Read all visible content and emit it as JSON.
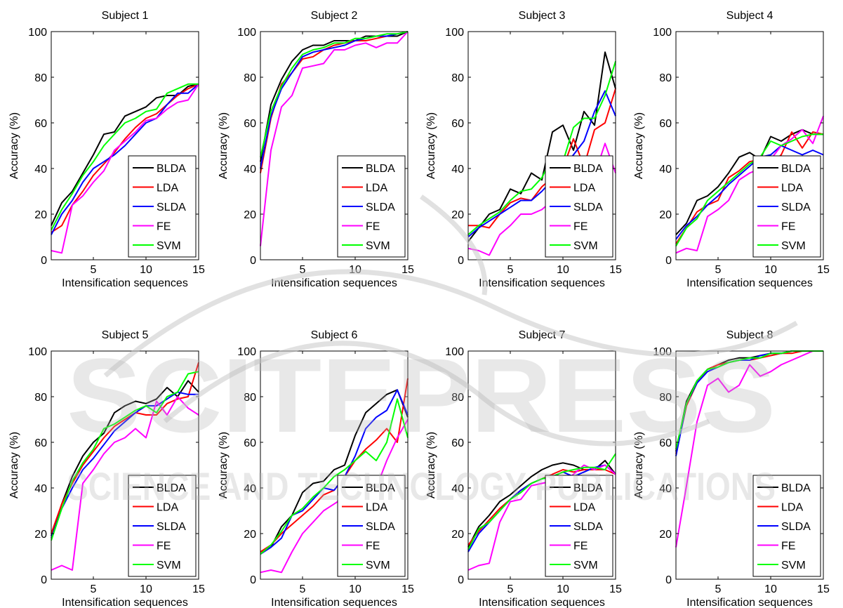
{
  "watermark": {
    "main": "SCITEPRESS",
    "sub": "SCIENCE AND TECHNOLOGY PUBLICATIONS"
  },
  "series_colors": {
    "BLDA": "#000000",
    "LDA": "#ff0000",
    "SLDA": "#0000ff",
    "FE": "#ff00ff",
    "SVM": "#00ff00"
  },
  "chart_data": [
    {
      "type": "line",
      "title": "Subject 1",
      "xlabel": "Intensification sequences",
      "ylabel": "Accuracy (%)",
      "xlim": [
        1,
        15
      ],
      "ylim": [
        0,
        100
      ],
      "xticks": [
        5,
        10,
        15
      ],
      "yticks": [
        0,
        20,
        40,
        60,
        80,
        100
      ],
      "legend": "bottom-right",
      "x": [
        1,
        2,
        3,
        4,
        5,
        6,
        7,
        8,
        9,
        10,
        11,
        12,
        13,
        14,
        15
      ],
      "series": [
        {
          "name": "BLDA",
          "values": [
            15,
            25,
            30,
            38,
            46,
            55,
            56,
            63,
            65,
            67,
            71,
            72,
            72,
            76,
            77
          ]
        },
        {
          "name": "LDA",
          "values": [
            12,
            15,
            24,
            30,
            37,
            42,
            47,
            53,
            58,
            62,
            64,
            68,
            72,
            75,
            77
          ]
        },
        {
          "name": "SLDA",
          "values": [
            11,
            20,
            26,
            34,
            40,
            43,
            46,
            50,
            55,
            60,
            62,
            68,
            73,
            73,
            77
          ]
        },
        {
          "name": "FE",
          "values": [
            4,
            3,
            24,
            28,
            34,
            39,
            48,
            52,
            56,
            61,
            62,
            66,
            69,
            70,
            77
          ]
        },
        {
          "name": "SVM",
          "values": [
            13,
            22,
            29,
            37,
            43,
            50,
            55,
            60,
            62,
            65,
            66,
            73,
            75,
            77,
            77
          ]
        }
      ]
    },
    {
      "type": "line",
      "title": "Subject 2",
      "xlabel": "Intensification sequences",
      "ylabel": "Accuracy (%)",
      "xlim": [
        1,
        15
      ],
      "ylim": [
        0,
        100
      ],
      "xticks": [
        5,
        10,
        15
      ],
      "yticks": [
        0,
        20,
        40,
        60,
        80,
        100
      ],
      "legend": "bottom-right",
      "x": [
        1,
        2,
        3,
        4,
        5,
        6,
        7,
        8,
        9,
        10,
        11,
        12,
        13,
        14,
        15
      ],
      "series": [
        {
          "name": "BLDA",
          "values": [
            43,
            68,
            79,
            87,
            92,
            94,
            94,
            96,
            96,
            96,
            98,
            98,
            98,
            98,
            100
          ]
        },
        {
          "name": "LDA",
          "values": [
            38,
            62,
            77,
            82,
            88,
            89,
            92,
            94,
            95,
            96,
            96,
            97,
            98,
            99,
            100
          ]
        },
        {
          "name": "SLDA",
          "values": [
            40,
            63,
            75,
            82,
            89,
            91,
            92,
            93,
            94,
            96,
            97,
            98,
            98,
            99,
            100
          ]
        },
        {
          "name": "FE",
          "values": [
            6,
            48,
            67,
            72,
            84,
            85,
            86,
            92,
            92,
            94,
            95,
            93,
            95,
            95,
            100
          ]
        },
        {
          "name": "SVM",
          "values": [
            45,
            65,
            76,
            84,
            90,
            92,
            93,
            95,
            95,
            97,
            97,
            98,
            99,
            99,
            100
          ]
        }
      ]
    },
    {
      "type": "line",
      "title": "Subject 3",
      "xlabel": "Intensification sequences",
      "ylabel": "Accuracy (%)",
      "xlim": [
        1,
        15
      ],
      "ylim": [
        0,
        100
      ],
      "xticks": [
        5,
        10,
        15
      ],
      "yticks": [
        0,
        20,
        40,
        60,
        80,
        100
      ],
      "legend": "bottom-right",
      "x": [
        1,
        2,
        3,
        4,
        5,
        6,
        7,
        8,
        9,
        10,
        11,
        12,
        13,
        14,
        15
      ],
      "series": [
        {
          "name": "BLDA",
          "values": [
            8,
            14,
            20,
            22,
            31,
            29,
            38,
            35,
            56,
            59,
            48,
            65,
            59,
            91,
            75
          ]
        },
        {
          "name": "LDA",
          "values": [
            15,
            15,
            14,
            20,
            25,
            27,
            26,
            32,
            36,
            40,
            53,
            41,
            57,
            60,
            75
          ]
        },
        {
          "name": "SLDA",
          "values": [
            10,
            14,
            17,
            20,
            23,
            26,
            26,
            30,
            35,
            41,
            46,
            52,
            65,
            74,
            63
          ]
        },
        {
          "name": "FE",
          "values": [
            5,
            4,
            2,
            11,
            15,
            20,
            20,
            22,
            26,
            31,
            28,
            36,
            37,
            51,
            38
          ]
        },
        {
          "name": "SVM",
          "values": [
            11,
            15,
            18,
            21,
            26,
            30,
            31,
            36,
            45,
            43,
            58,
            62,
            62,
            72,
            87
          ]
        }
      ]
    },
    {
      "type": "line",
      "title": "Subject 4",
      "xlabel": "Intensification sequences",
      "ylabel": "Accuracy (%)",
      "xlim": [
        1,
        15
      ],
      "ylim": [
        0,
        100
      ],
      "xticks": [
        5,
        10,
        15
      ],
      "yticks": [
        0,
        20,
        40,
        60,
        80,
        100
      ],
      "legend": "bottom-right",
      "x": [
        1,
        2,
        3,
        4,
        5,
        6,
        7,
        8,
        9,
        10,
        11,
        12,
        13,
        14,
        15
      ],
      "series": [
        {
          "name": "BLDA",
          "values": [
            11,
            16,
            26,
            28,
            32,
            38,
            45,
            47,
            44,
            54,
            52,
            55,
            57,
            55,
            55
          ]
        },
        {
          "name": "LDA",
          "values": [
            7,
            14,
            21,
            24,
            26,
            36,
            39,
            43,
            44,
            42,
            46,
            56,
            49,
            56,
            55
          ]
        },
        {
          "name": "SLDA",
          "values": [
            9,
            15,
            19,
            24,
            28,
            33,
            37,
            41,
            45,
            46,
            50,
            48,
            46,
            48,
            46
          ]
        },
        {
          "name": "FE",
          "values": [
            3,
            5,
            4,
            19,
            22,
            26,
            35,
            38,
            40,
            44,
            50,
            53,
            57,
            51,
            63
          ]
        },
        {
          "name": "SVM",
          "values": [
            6,
            14,
            18,
            26,
            30,
            34,
            38,
            42,
            45,
            52,
            50,
            52,
            54,
            55,
            55
          ]
        }
      ]
    },
    {
      "type": "line",
      "title": "Subject 5",
      "xlabel": "Intensification sequences",
      "ylabel": "Accuracy (%)",
      "xlim": [
        1,
        15
      ],
      "ylim": [
        0,
        100
      ],
      "xticks": [
        5,
        10,
        15
      ],
      "yticks": [
        0,
        20,
        40,
        60,
        80,
        100
      ],
      "legend": "bottom-right",
      "x": [
        1,
        2,
        3,
        4,
        5,
        6,
        7,
        8,
        9,
        10,
        11,
        12,
        13,
        14,
        15
      ],
      "series": [
        {
          "name": "BLDA",
          "values": [
            19,
            33,
            45,
            54,
            60,
            64,
            73,
            76,
            78,
            77,
            79,
            84,
            80,
            87,
            82
          ]
        },
        {
          "name": "LDA",
          "values": [
            20,
            33,
            42,
            50,
            56,
            62,
            67,
            70,
            73,
            72,
            72,
            77,
            79,
            80,
            95
          ]
        },
        {
          "name": "SLDA",
          "values": [
            18,
            31,
            40,
            48,
            53,
            59,
            65,
            69,
            73,
            76,
            76,
            79,
            82,
            81,
            81
          ]
        },
        {
          "name": "FE",
          "values": [
            4,
            6,
            4,
            42,
            48,
            55,
            60,
            62,
            66,
            62,
            78,
            72,
            80,
            75,
            72
          ]
        },
        {
          "name": "SVM",
          "values": [
            17,
            31,
            43,
            51,
            57,
            66,
            68,
            71,
            74,
            76,
            73,
            80,
            82,
            90,
            91
          ]
        }
      ]
    },
    {
      "type": "line",
      "title": "Subject 6",
      "xlabel": "Intensification sequences",
      "ylabel": "Accuracy (%)",
      "xlim": [
        1,
        15
      ],
      "ylim": [
        0,
        100
      ],
      "xticks": [
        5,
        10,
        15
      ],
      "yticks": [
        0,
        20,
        40,
        60,
        80,
        100
      ],
      "legend": "bottom-right",
      "x": [
        1,
        2,
        3,
        4,
        5,
        6,
        7,
        8,
        9,
        10,
        11,
        12,
        13,
        14,
        15
      ],
      "series": [
        {
          "name": "BLDA",
          "values": [
            12,
            14,
            23,
            28,
            38,
            42,
            43,
            48,
            50,
            63,
            73,
            77,
            81,
            83,
            71
          ]
        },
        {
          "name": "LDA",
          "values": [
            12,
            15,
            20,
            24,
            28,
            32,
            37,
            39,
            45,
            52,
            57,
            61,
            66,
            60,
            88
          ]
        },
        {
          "name": "SLDA",
          "values": [
            11,
            14,
            18,
            28,
            30,
            35,
            40,
            39,
            45,
            54,
            66,
            71,
            74,
            83,
            72
          ]
        },
        {
          "name": "FE",
          "values": [
            3,
            4,
            3,
            12,
            20,
            25,
            30,
            33,
            36,
            44,
            44,
            40,
            52,
            62,
            70
          ]
        },
        {
          "name": "SVM",
          "values": [
            11,
            15,
            21,
            28,
            31,
            36,
            40,
            45,
            48,
            52,
            56,
            52,
            60,
            79,
            62
          ]
        }
      ]
    },
    {
      "type": "line",
      "title": "Subject 7",
      "xlabel": "Intensification sequences",
      "ylabel": "Accuracy (%)",
      "xlim": [
        1,
        15
      ],
      "ylim": [
        0,
        100
      ],
      "xticks": [
        5,
        10,
        15
      ],
      "yticks": [
        0,
        20,
        40,
        60,
        80,
        100
      ],
      "legend": "bottom-right",
      "x": [
        1,
        2,
        3,
        4,
        5,
        6,
        7,
        8,
        9,
        10,
        11,
        12,
        13,
        14,
        15
      ],
      "series": [
        {
          "name": "BLDA",
          "values": [
            14,
            23,
            28,
            34,
            37,
            41,
            45,
            48,
            50,
            51,
            50,
            48,
            48,
            52,
            46
          ]
        },
        {
          "name": "LDA",
          "values": [
            15,
            21,
            26,
            31,
            35,
            39,
            42,
            44,
            46,
            48,
            47,
            48,
            48,
            48,
            46
          ]
        },
        {
          "name": "SLDA",
          "values": [
            12,
            20,
            25,
            30,
            35,
            39,
            42,
            44,
            45,
            47,
            45,
            47,
            49,
            50,
            46
          ]
        },
        {
          "name": "FE",
          "values": [
            4,
            6,
            7,
            25,
            34,
            35,
            41,
            42,
            43,
            42,
            46,
            50,
            48,
            50,
            46
          ]
        },
        {
          "name": "SVM",
          "values": [
            13,
            22,
            25,
            30,
            35,
            38,
            42,
            44,
            45,
            47,
            48,
            49,
            49,
            48,
            55
          ]
        }
      ]
    },
    {
      "type": "line",
      "title": "Subject 8",
      "xlabel": "Intensification sequences",
      "ylabel": "Accuracy (%)",
      "xlim": [
        1,
        15
      ],
      "ylim": [
        0,
        100
      ],
      "xticks": [
        5,
        10,
        15
      ],
      "yticks": [
        0,
        20,
        40,
        60,
        80,
        100
      ],
      "legend": "bottom-right",
      "x": [
        1,
        2,
        3,
        4,
        5,
        6,
        7,
        8,
        9,
        10,
        11,
        12,
        13,
        14,
        15
      ],
      "series": [
        {
          "name": "BLDA",
          "values": [
            56,
            78,
            87,
            92,
            94,
            96,
            97,
            97,
            98,
            99,
            99,
            100,
            100,
            100,
            100
          ]
        },
        {
          "name": "LDA",
          "values": [
            55,
            76,
            86,
            92,
            94,
            95,
            96,
            96,
            97,
            98,
            99,
            99,
            100,
            100,
            100
          ]
        },
        {
          "name": "SLDA",
          "values": [
            54,
            77,
            86,
            91,
            93,
            95,
            96,
            96,
            98,
            99,
            99,
            100,
            100,
            100,
            100
          ]
        },
        {
          "name": "FE",
          "values": [
            14,
            41,
            69,
            85,
            88,
            82,
            85,
            94,
            89,
            91,
            94,
            96,
            98,
            100,
            100
          ]
        },
        {
          "name": "SVM",
          "values": [
            57,
            77,
            87,
            92,
            93,
            95,
            96,
            97,
            97,
            99,
            99,
            100,
            100,
            100,
            100
          ]
        }
      ]
    }
  ]
}
